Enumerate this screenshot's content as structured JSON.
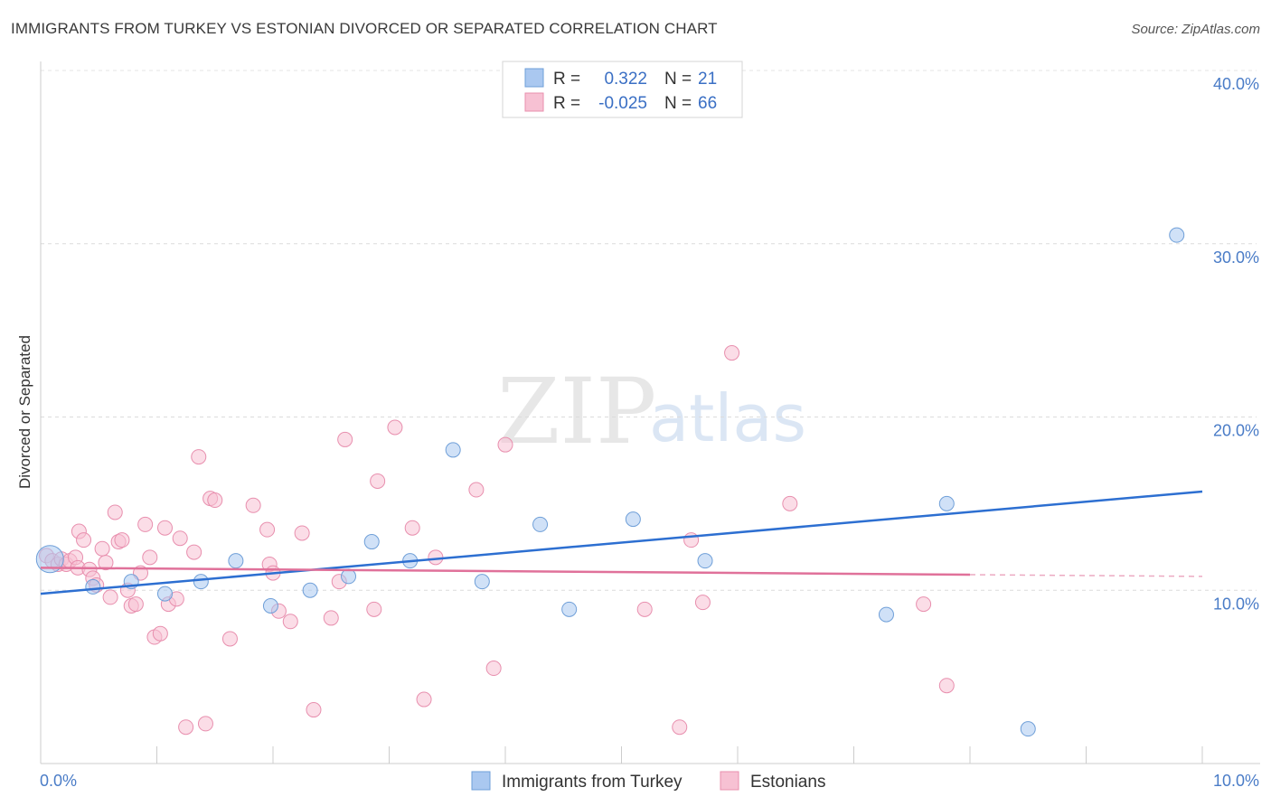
{
  "title": "IMMIGRANTS FROM TURKEY VS ESTONIAN DIVORCED OR SEPARATED CORRELATION CHART",
  "source": "Source: ZipAtlas.com",
  "watermark": {
    "zip": "ZIP",
    "atlas": "atlas"
  },
  "legend_box": {
    "rows": [
      {
        "r_label": "R =",
        "r_value": "0.322",
        "n_label": "N =",
        "n_value": "21",
        "color": "#aac8f0",
        "stroke": "#6f9fd8"
      },
      {
        "r_label": "R =",
        "r_value": "-0.025",
        "n_label": "N =",
        "n_value": "66",
        "color": "#f7c1d3",
        "stroke": "#e88fae"
      }
    ]
  },
  "chart_data": {
    "type": "scatter",
    "title": "IMMIGRANTS FROM TURKEY VS ESTONIAN DIVORCED OR SEPARATED CORRELATION CHART",
    "xlabel": "",
    "ylabel": "Divorced or Separated",
    "xlim": [
      0,
      10
    ],
    "ylim": [
      0,
      40
    ],
    "x_tick_labels": [
      "0.0%",
      "10.0%"
    ],
    "y_ticks": [
      10,
      20,
      30,
      40
    ],
    "y_tick_labels": [
      "10.0%",
      "20.0%",
      "30.0%",
      "40.0%"
    ],
    "grid": true,
    "legend_position": "bottom",
    "series": [
      {
        "name": "Immigrants from Turkey",
        "color": "#aac8f0",
        "stroke": "#6f9fd8",
        "trend_color": "#2d6fd1",
        "trend": {
          "x": [
            0.0,
            10.0
          ],
          "y": [
            9.8,
            15.7
          ],
          "dashed_from": null
        },
        "points": [
          {
            "x": 0.08,
            "y": 11.8,
            "big": true
          },
          {
            "x": 0.45,
            "y": 10.2
          },
          {
            "x": 0.78,
            "y": 10.5
          },
          {
            "x": 1.07,
            "y": 9.8
          },
          {
            "x": 1.38,
            "y": 10.5
          },
          {
            "x": 1.68,
            "y": 11.7
          },
          {
            "x": 1.98,
            "y": 9.1
          },
          {
            "x": 2.32,
            "y": 10.0
          },
          {
            "x": 2.65,
            "y": 10.8
          },
          {
            "x": 2.85,
            "y": 12.8
          },
          {
            "x": 3.18,
            "y": 11.7
          },
          {
            "x": 3.55,
            "y": 18.1
          },
          {
            "x": 3.8,
            "y": 10.5
          },
          {
            "x": 4.3,
            "y": 13.8
          },
          {
            "x": 4.55,
            "y": 8.9
          },
          {
            "x": 5.1,
            "y": 14.1
          },
          {
            "x": 5.72,
            "y": 11.7
          },
          {
            "x": 7.28,
            "y": 8.6
          },
          {
            "x": 7.8,
            "y": 15.0
          },
          {
            "x": 8.5,
            "y": 2.0
          },
          {
            "x": 9.78,
            "y": 30.5
          }
        ]
      },
      {
        "name": "Estonians",
        "color": "#f7c1d3",
        "stroke": "#e88fae",
        "trend_color": "#e0719a",
        "trend": {
          "x": [
            0.0,
            10.0
          ],
          "y": [
            11.3,
            10.8
          ],
          "dashed_from": 8.0
        },
        "points": [
          {
            "x": 0.05,
            "y": 12.0
          },
          {
            "x": 0.1,
            "y": 11.7
          },
          {
            "x": 0.15,
            "y": 11.5
          },
          {
            "x": 0.18,
            "y": 11.8
          },
          {
            "x": 0.22,
            "y": 11.5
          },
          {
            "x": 0.25,
            "y": 11.7
          },
          {
            "x": 0.3,
            "y": 11.9
          },
          {
            "x": 0.32,
            "y": 11.3
          },
          {
            "x": 0.33,
            "y": 13.4
          },
          {
            "x": 0.37,
            "y": 12.9
          },
          {
            "x": 0.42,
            "y": 11.2
          },
          {
            "x": 0.45,
            "y": 10.7
          },
          {
            "x": 0.48,
            "y": 10.3
          },
          {
            "x": 0.53,
            "y": 12.4
          },
          {
            "x": 0.56,
            "y": 11.6
          },
          {
            "x": 0.6,
            "y": 9.6
          },
          {
            "x": 0.64,
            "y": 14.5
          },
          {
            "x": 0.67,
            "y": 12.8
          },
          {
            "x": 0.7,
            "y": 12.9
          },
          {
            "x": 0.75,
            "y": 10.0
          },
          {
            "x": 0.78,
            "y": 9.1
          },
          {
            "x": 0.82,
            "y": 9.2
          },
          {
            "x": 0.86,
            "y": 11.0
          },
          {
            "x": 0.9,
            "y": 13.8
          },
          {
            "x": 0.94,
            "y": 11.9
          },
          {
            "x": 0.98,
            "y": 7.3
          },
          {
            "x": 1.03,
            "y": 7.5
          },
          {
            "x": 1.07,
            "y": 13.6
          },
          {
            "x": 1.1,
            "y": 9.2
          },
          {
            "x": 1.17,
            "y": 9.5
          },
          {
            "x": 1.2,
            "y": 13.0
          },
          {
            "x": 1.32,
            "y": 12.2
          },
          {
            "x": 1.25,
            "y": 2.1
          },
          {
            "x": 1.42,
            "y": 2.3
          },
          {
            "x": 1.36,
            "y": 17.7
          },
          {
            "x": 1.46,
            "y": 15.3
          },
          {
            "x": 1.5,
            "y": 15.2
          },
          {
            "x": 1.63,
            "y": 7.2
          },
          {
            "x": 1.83,
            "y": 14.9
          },
          {
            "x": 1.95,
            "y": 13.5
          },
          {
            "x": 1.97,
            "y": 11.5
          },
          {
            "x": 2.0,
            "y": 11.0
          },
          {
            "x": 2.05,
            "y": 8.8
          },
          {
            "x": 2.15,
            "y": 8.2
          },
          {
            "x": 2.25,
            "y": 13.3
          },
          {
            "x": 2.35,
            "y": 3.1
          },
          {
            "x": 2.5,
            "y": 8.4
          },
          {
            "x": 2.57,
            "y": 10.5
          },
          {
            "x": 2.62,
            "y": 18.7
          },
          {
            "x": 2.87,
            "y": 8.9
          },
          {
            "x": 2.9,
            "y": 16.3
          },
          {
            "x": 3.05,
            "y": 19.4
          },
          {
            "x": 3.2,
            "y": 13.6
          },
          {
            "x": 3.3,
            "y": 3.7
          },
          {
            "x": 3.4,
            "y": 11.9
          },
          {
            "x": 3.75,
            "y": 15.8
          },
          {
            "x": 3.9,
            "y": 5.5
          },
          {
            "x": 4.0,
            "y": 18.4
          },
          {
            "x": 5.2,
            "y": 8.9
          },
          {
            "x": 5.5,
            "y": 2.1
          },
          {
            "x": 5.6,
            "y": 12.9
          },
          {
            "x": 5.7,
            "y": 9.3
          },
          {
            "x": 5.95,
            "y": 23.7
          },
          {
            "x": 6.45,
            "y": 15.0
          },
          {
            "x": 7.6,
            "y": 9.2
          },
          {
            "x": 7.8,
            "y": 4.5
          }
        ]
      }
    ]
  }
}
